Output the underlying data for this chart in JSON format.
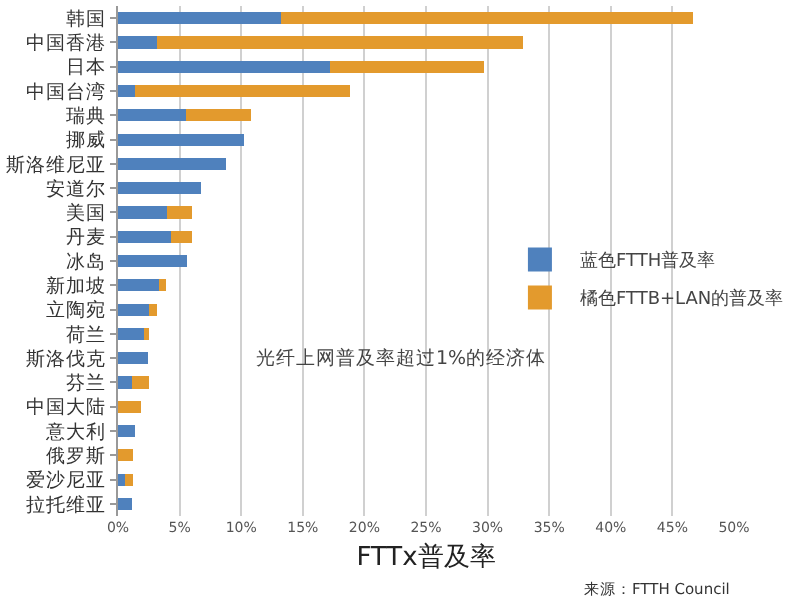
{
  "chart_data": {
    "type": "bar",
    "orientation": "horizontal",
    "stacked": true,
    "categories": [
      "韩国",
      "中国香港",
      "日本",
      "中国台湾",
      "瑞典",
      "挪威",
      "斯洛维尼亚",
      "安道尔",
      "美国",
      "丹麦",
      "冰岛",
      "新加坡",
      "立陶宛",
      "荷兰",
      "斯洛伐克",
      "芬兰",
      "中国大陆",
      "意大利",
      "俄罗斯",
      "爱沙尼亚",
      "拉托维亚"
    ],
    "series": [
      {
        "name": "蓝色FTTH普及率",
        "color": "#4f81bd",
        "values": [
          13.2,
          3.2,
          17.2,
          1.4,
          5.5,
          10.2,
          8.8,
          6.7,
          4.0,
          4.3,
          5.6,
          3.3,
          2.5,
          2.1,
          2.4,
          1.1,
          0,
          1.4,
          0,
          0.6,
          1.1
        ]
      },
      {
        "name": "橘色FTTB+LAN的普及率",
        "color": "#e39a2d",
        "values": [
          33.5,
          29.7,
          12.5,
          17.4,
          5.3,
          0,
          0,
          0,
          2.0,
          1.7,
          0,
          0.6,
          0.7,
          0.4,
          0,
          1.4,
          1.9,
          0,
          1.2,
          0.6,
          0
        ]
      }
    ],
    "xlabel": "FTTx普及率",
    "xlim": [
      0,
      50
    ],
    "xticks": [
      {
        "value": 0,
        "label": "0%"
      },
      {
        "value": 5,
        "label": "5%"
      },
      {
        "value": 10,
        "label": "10%"
      },
      {
        "value": 15,
        "label": "15%"
      },
      {
        "value": 20,
        "label": "20%"
      },
      {
        "value": 25,
        "label": "25%"
      },
      {
        "value": 30,
        "label": "30%"
      },
      {
        "value": 35,
        "label": "35%"
      },
      {
        "value": 40,
        "label": "40%"
      },
      {
        "value": 45,
        "label": "45%"
      },
      {
        "value": 50,
        "label": "50%"
      }
    ],
    "grid": "x",
    "legend": "right",
    "annotations": [
      "光纤上网普及率超过1%的经济体",
      "来源：FTTH Council"
    ]
  }
}
